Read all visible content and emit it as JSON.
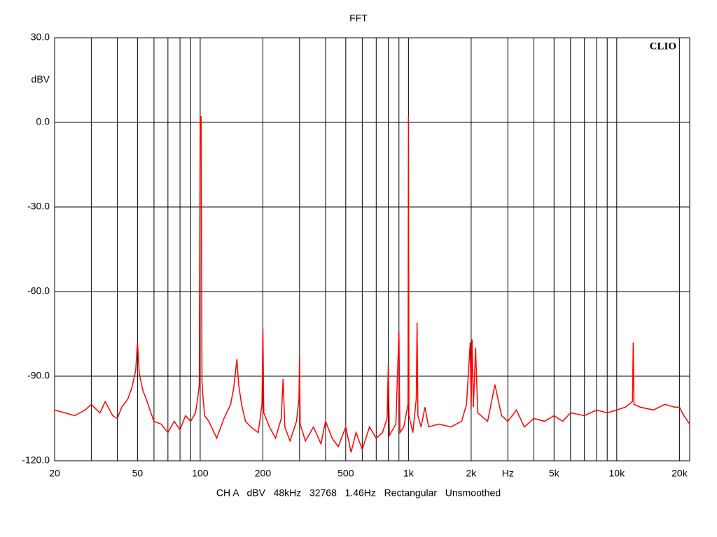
{
  "chart_data": {
    "type": "line",
    "title": "FFT",
    "annotation": "CLIO",
    "y_label": "dBV",
    "x_label": "Hz",
    "footer": "CH A   dBV   48kHz   32768   1.46Hz   Rectangular   Unsmoothed",
    "log_x": true,
    "grid": true,
    "color": "#ff0000",
    "xlim": [
      20,
      22400
    ],
    "ylim": [
      -120,
      30
    ],
    "yticks": [
      {
        "value": 30,
        "label": "30.0"
      },
      {
        "value": 0,
        "label": "0.0"
      },
      {
        "value": -30,
        "label": "-30.0"
      },
      {
        "value": -60,
        "label": "-60.0"
      },
      {
        "value": -90,
        "label": "-90.0"
      },
      {
        "value": -120,
        "label": "-120.0"
      }
    ],
    "xticks": [
      20,
      50,
      100,
      200,
      500,
      {
        "value": 1000,
        "label": "1k"
      },
      {
        "value": 2000,
        "label": "2k"
      },
      {
        "value": 5000,
        "label": "5k"
      },
      {
        "value": 10000,
        "label": "10k"
      },
      {
        "value": 20000,
        "label": "20k"
      }
    ],
    "x_label_at": 3000,
    "xgrid": [
      30,
      40,
      50,
      60,
      70,
      80,
      90,
      100,
      200,
      300,
      400,
      500,
      600,
      700,
      800,
      900,
      1000,
      2000,
      3000,
      4000,
      5000,
      6000,
      7000,
      8000,
      9000,
      10000,
      20000
    ],
    "x": [
      20,
      25,
      28,
      30,
      33,
      35,
      38,
      40,
      42,
      45,
      47,
      49,
      50,
      51,
      53,
      55,
      58,
      60,
      65,
      70,
      75,
      80,
      85,
      90,
      95,
      98,
      99,
      100,
      101,
      102,
      103,
      105,
      110,
      120,
      130,
      140,
      145,
      150,
      153,
      158,
      165,
      175,
      190,
      198,
      200,
      202,
      215,
      230,
      245,
      250,
      255,
      270,
      290,
      298,
      300,
      302,
      320,
      350,
      380,
      400,
      430,
      460,
      500,
      530,
      560,
      600,
      650,
      700,
      750,
      790,
      800,
      810,
      870,
      900,
      910,
      950,
      995,
      1000,
      1005,
      1050,
      1090,
      1100,
      1110,
      1150,
      1200,
      1250,
      1400,
      1600,
      1800,
      1900,
      1980,
      2000,
      2020,
      2050,
      2100,
      2150,
      2400,
      2600,
      2800,
      3000,
      3300,
      3600,
      4000,
      4500,
      5000,
      5500,
      6000,
      7000,
      8000,
      9000,
      10000,
      11000,
      11900,
      12000,
      12100,
      13000,
      15000,
      17000,
      19000,
      20000,
      21000,
      22400
    ],
    "values": [
      -102,
      -104,
      -102,
      -100,
      -103,
      -99,
      -104,
      -105,
      -101,
      -98,
      -94,
      -88,
      -78,
      -89,
      -95,
      -98,
      -103,
      -106,
      -107,
      -110,
      -106,
      -109,
      -104,
      -106,
      -103,
      -96,
      -93,
      2,
      2,
      -92,
      -97,
      -104,
      -106,
      -112,
      -105,
      -100,
      -94,
      -84,
      -93,
      -100,
      -106,
      -108,
      -110,
      -100,
      -73,
      -103,
      -108,
      -112,
      -105,
      -91,
      -108,
      -113,
      -106,
      -98,
      -83,
      -107,
      -113,
      -108,
      -114,
      -106,
      -112,
      -115,
      -108,
      -117,
      -110,
      -116,
      -108,
      -112,
      -110,
      -105,
      -86,
      -111,
      -107,
      -74,
      -110,
      -108,
      -100,
      2,
      -104,
      -110,
      -98,
      -71,
      -104,
      -108,
      -101,
      -108,
      -107,
      -108,
      -106,
      -100,
      -78,
      -102,
      -77,
      -101,
      -80,
      -103,
      -106,
      -93,
      -104,
      -106,
      -102,
      -108,
      -105,
      -106,
      -104,
      -106,
      -103,
      -104,
      -102,
      -103,
      -102,
      -101,
      -99,
      -78,
      -100,
      -101,
      -102,
      -100,
      -101,
      -101,
      -104,
      -107
    ]
  }
}
